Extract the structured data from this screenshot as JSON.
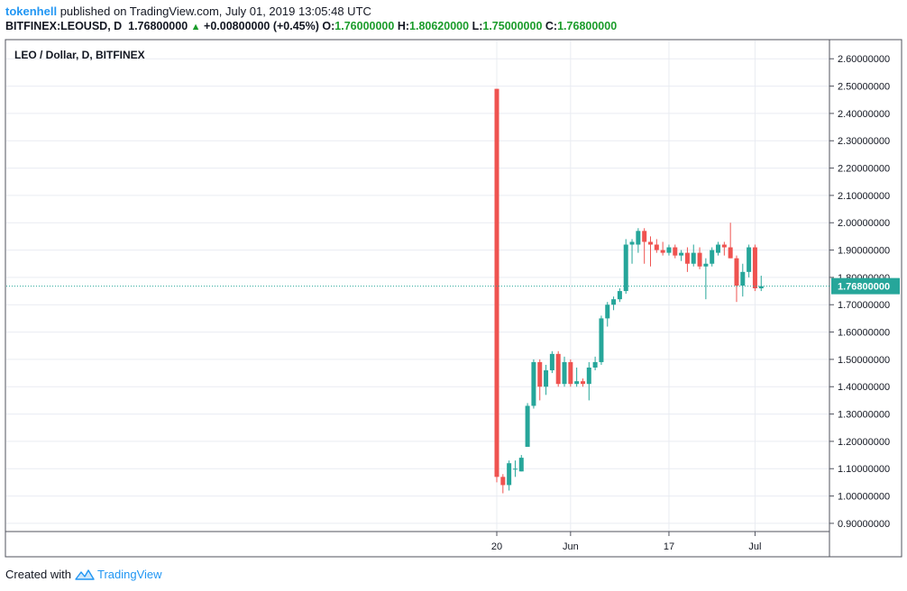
{
  "header": {
    "user": "tokenhell",
    "published": "published on TradingView.com, July 01, 2019 13:05:48 UTC",
    "symbol": "BITFINEX:LEOUSD, D",
    "last": "1.76800000",
    "change": "+0.00800000 (+0.45%)",
    "o_label": "O:",
    "o_value": "1.76000000",
    "h_label": "H:",
    "h_value": "1.80620000",
    "l_label": "L:",
    "l_value": "1.75000000",
    "c_label": "C:",
    "c_value": "1.76800000"
  },
  "footer": {
    "created_with": "Created with",
    "brand": "TradingView"
  },
  "colors": {
    "up": "#26a69a",
    "down": "#ef5350",
    "grid": "#e9ecf2",
    "axis": "#50535e",
    "last_line": "#26a69a"
  },
  "chart_data": {
    "type": "candlestick",
    "title": "LEO / Dollar, D, BITFINEX",
    "ylim": [
      0.87,
      2.67
    ],
    "y_ticks": [
      "0.90000000",
      "1.00000000",
      "1.10000000",
      "1.20000000",
      "1.30000000",
      "1.40000000",
      "1.50000000",
      "1.60000000",
      "1.70000000",
      "1.80000000",
      "1.90000000",
      "2.00000000",
      "2.10000000",
      "2.20000000",
      "2.30000000",
      "2.40000000",
      "2.50000000",
      "2.60000000"
    ],
    "x_ticks": [
      {
        "label": "20",
        "index": 0
      },
      {
        "label": "Jun",
        "index": 12
      },
      {
        "label": "17",
        "index": 28
      },
      {
        "label": "Jul",
        "index": 42
      }
    ],
    "last_price": "1.76800000",
    "candles": [
      {
        "o": 2.49,
        "h": 2.49,
        "l": 1.05,
        "c": 1.07
      },
      {
        "o": 1.07,
        "h": 1.08,
        "l": 1.01,
        "c": 1.04
      },
      {
        "o": 1.04,
        "h": 1.13,
        "l": 1.02,
        "c": 1.12
      },
      {
        "o": 1.1,
        "h": 1.13,
        "l": 1.07,
        "c": 1.1
      },
      {
        "o": 1.09,
        "h": 1.15,
        "l": 1.09,
        "c": 1.14
      },
      {
        "o": 1.18,
        "h": 1.34,
        "l": 1.18,
        "c": 1.33
      },
      {
        "o": 1.33,
        "h": 1.5,
        "l": 1.32,
        "c": 1.49
      },
      {
        "o": 1.49,
        "h": 1.5,
        "l": 1.35,
        "c": 1.4
      },
      {
        "o": 1.4,
        "h": 1.48,
        "l": 1.37,
        "c": 1.46
      },
      {
        "o": 1.46,
        "h": 1.53,
        "l": 1.45,
        "c": 1.52
      },
      {
        "o": 1.52,
        "h": 1.53,
        "l": 1.4,
        "c": 1.41
      },
      {
        "o": 1.41,
        "h": 1.51,
        "l": 1.4,
        "c": 1.49
      },
      {
        "o": 1.49,
        "h": 1.5,
        "l": 1.4,
        "c": 1.41
      },
      {
        "o": 1.41,
        "h": 1.47,
        "l": 1.4,
        "c": 1.42
      },
      {
        "o": 1.42,
        "h": 1.43,
        "l": 1.4,
        "c": 1.41
      },
      {
        "o": 1.41,
        "h": 1.49,
        "l": 1.35,
        "c": 1.47
      },
      {
        "o": 1.47,
        "h": 1.51,
        "l": 1.46,
        "c": 1.49
      },
      {
        "o": 1.49,
        "h": 1.66,
        "l": 1.48,
        "c": 1.65
      },
      {
        "o": 1.65,
        "h": 1.71,
        "l": 1.62,
        "c": 1.7
      },
      {
        "o": 1.7,
        "h": 1.73,
        "l": 1.68,
        "c": 1.72
      },
      {
        "o": 1.72,
        "h": 1.76,
        "l": 1.71,
        "c": 1.75
      },
      {
        "o": 1.75,
        "h": 1.94,
        "l": 1.74,
        "c": 1.92
      },
      {
        "o": 1.92,
        "h": 1.94,
        "l": 1.85,
        "c": 1.93
      },
      {
        "o": 1.92,
        "h": 1.98,
        "l": 1.89,
        "c": 1.97
      },
      {
        "o": 1.97,
        "h": 1.98,
        "l": 1.85,
        "c": 1.93
      },
      {
        "o": 1.93,
        "h": 1.95,
        "l": 1.84,
        "c": 1.92
      },
      {
        "o": 1.92,
        "h": 1.94,
        "l": 1.89,
        "c": 1.9
      },
      {
        "o": 1.9,
        "h": 1.93,
        "l": 1.88,
        "c": 1.89
      },
      {
        "o": 1.89,
        "h": 1.92,
        "l": 1.88,
        "c": 1.91
      },
      {
        "o": 1.91,
        "h": 1.92,
        "l": 1.87,
        "c": 1.88
      },
      {
        "o": 1.88,
        "h": 1.9,
        "l": 1.86,
        "c": 1.89
      },
      {
        "o": 1.89,
        "h": 1.91,
        "l": 1.82,
        "c": 1.85
      },
      {
        "o": 1.85,
        "h": 1.92,
        "l": 1.84,
        "c": 1.89
      },
      {
        "o": 1.89,
        "h": 1.91,
        "l": 1.83,
        "c": 1.84
      },
      {
        "o": 1.84,
        "h": 1.87,
        "l": 1.72,
        "c": 1.85
      },
      {
        "o": 1.85,
        "h": 1.91,
        "l": 1.84,
        "c": 1.9
      },
      {
        "o": 1.89,
        "h": 1.93,
        "l": 1.88,
        "c": 1.92
      },
      {
        "o": 1.92,
        "h": 1.93,
        "l": 1.88,
        "c": 1.91
      },
      {
        "o": 1.91,
        "h": 2.0,
        "l": 1.87,
        "c": 1.87
      },
      {
        "o": 1.87,
        "h": 1.88,
        "l": 1.71,
        "c": 1.77
      },
      {
        "o": 1.77,
        "h": 1.85,
        "l": 1.73,
        "c": 1.82
      },
      {
        "o": 1.82,
        "h": 1.92,
        "l": 1.8,
        "c": 1.91
      },
      {
        "o": 1.91,
        "h": 1.92,
        "l": 1.75,
        "c": 1.76
      },
      {
        "o": 1.76,
        "h": 1.8062,
        "l": 1.75,
        "c": 1.768
      }
    ]
  }
}
